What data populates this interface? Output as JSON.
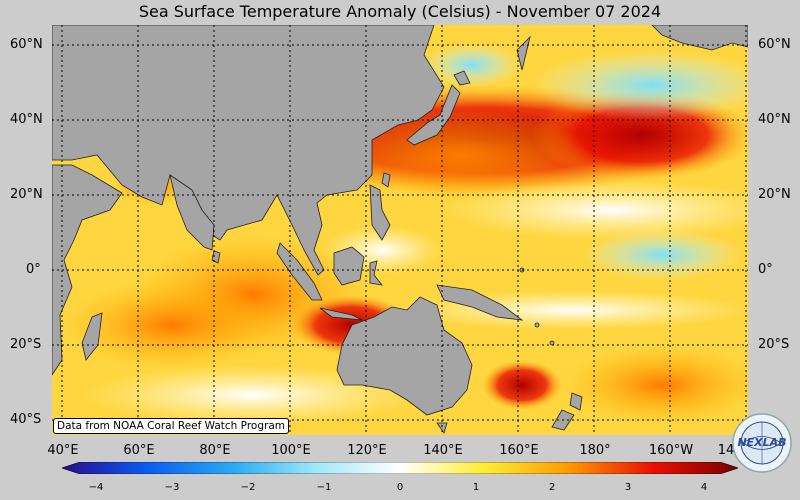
{
  "title": "Sea Surface Temperature Anomaly (Celsius) - November 07 2024",
  "lat_labels": [
    "60°N",
    "40°N",
    "20°N",
    "0°",
    "20°S",
    "40°S"
  ],
  "lon_labels": [
    "40°E",
    "60°E",
    "80°E",
    "100°E",
    "120°E",
    "140°E",
    "160°E",
    "180°",
    "160°W",
    "14"
  ],
  "credit": "Data from NOAA Coral Reef Watch Program",
  "colorbar": {
    "ticks": [
      "−4",
      "−3",
      "−2",
      "−1",
      "0",
      "1",
      "2",
      "3",
      "4"
    ],
    "colors": [
      "#2b0a8c",
      "#0a5cf0",
      "#2aa8f5",
      "#9ee8f8",
      "#ffffff",
      "#ffee30",
      "#ff9a00",
      "#e81000",
      "#7a0000"
    ]
  },
  "logo_text": "NEXLAB",
  "colors": {
    "land": "#a5a5a5",
    "background": "#cccccc"
  }
}
